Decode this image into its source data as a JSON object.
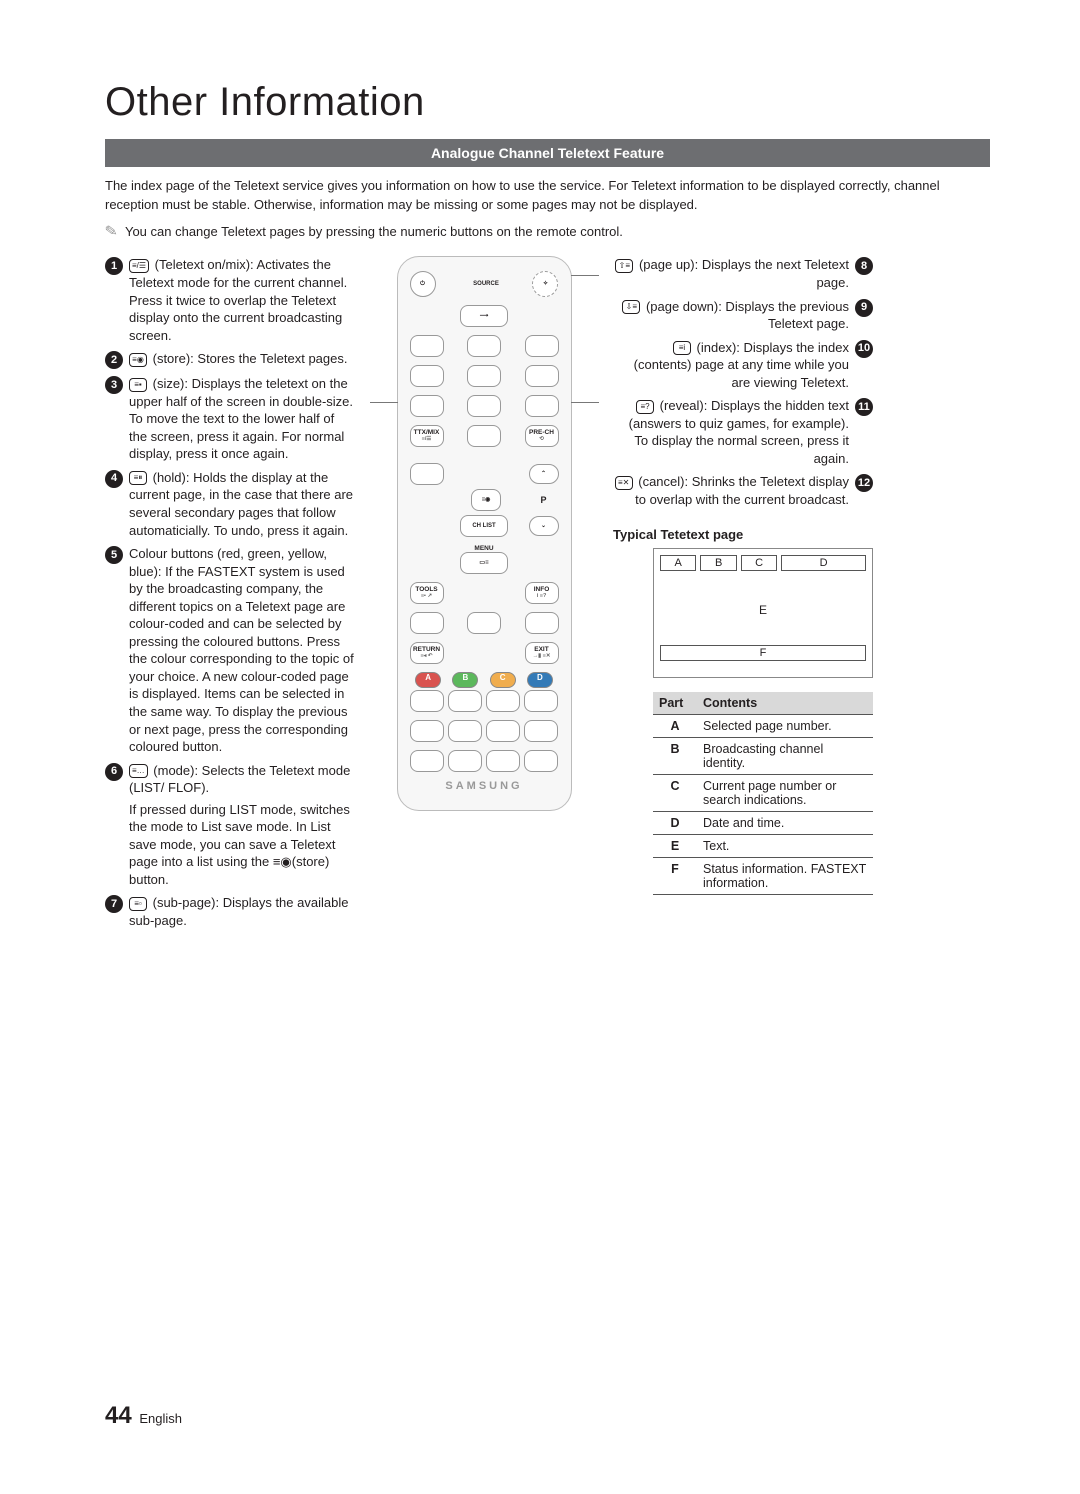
{
  "title": "Other Information",
  "subtitle": "Analogue Channel Teletext Feature",
  "intro": "The index page of the Teletext service gives you information on how to use the service. For Teletext information to be displayed correctly, channel reception must be stable. Otherwise, information may be missing or some pages may not be displayed.",
  "note": "You can change Teletext pages by pressing the numeric buttons on the remote control.",
  "left": [
    {
      "n": "1",
      "icon": "≡/☰",
      "text": "(Teletext on/mix): Activates the Teletext mode for the current channel. Press it twice to overlap the Teletext display onto the current broadcasting screen."
    },
    {
      "n": "2",
      "icon": "≡◉",
      "text": "(store): Stores the Teletext pages."
    },
    {
      "n": "3",
      "icon": "≡▪",
      "text": "(size): Displays the teletext on the upper half of the screen in double-size. To move the text to the lower half of the screen, press it again. For normal display, press it once again."
    },
    {
      "n": "4",
      "icon": "≡⏸",
      "text": "(hold): Holds the display at the current page, in the case that there are several secondary pages that follow automaticially. To undo, press it again."
    },
    {
      "n": "5",
      "icon": "",
      "text": "Colour buttons (red, green, yellow, blue): If the FASTEXT system is used by the broadcasting company, the different topics on a Teletext page are colour-coded and can be selected by pressing the coloured buttons. Press the colour corresponding to the topic of your choice. A new colour-coded page is displayed. Items can be selected in the same way. To display the previous or next page, press the corresponding coloured button."
    },
    {
      "n": "6",
      "icon": "≡…",
      "text": "(mode): Selects the Teletext mode (LIST/ FLOF).",
      "extra": "If pressed during LIST mode, switches the mode to List save mode. In List save mode, you can save a Teletext page into a list using the ≡◉(store) button."
    },
    {
      "n": "7",
      "icon": "≡▫",
      "text": "(sub-page): Displays the available sub-page."
    }
  ],
  "right": [
    {
      "n": "8",
      "icon": "⇧≡",
      "text": "(page up): Displays the next Teletext page."
    },
    {
      "n": "9",
      "icon": "⇩≡",
      "text": "(page down): Displays the previous Teletext page."
    },
    {
      "n": "10",
      "icon": "≡i",
      "text": "(index): Displays the index (contents) page at any time while you are viewing Teletext."
    },
    {
      "n": "11",
      "icon": "≡?",
      "text": "(reveal): Displays the hidden text (answers to quiz games, for example). To display the normal screen, press it again."
    },
    {
      "n": "12",
      "icon": "≡✕",
      "text": "(cancel): Shrinks the Teletext display to overlap with the current broadcast."
    }
  ],
  "tt_heading": "Typical Tetetext page",
  "tt_parts": {
    "A": "A",
    "B": "B",
    "C": "C",
    "D": "D",
    "E": "E",
    "F": "F"
  },
  "table": {
    "head": {
      "part": "Part",
      "contents": "Contents"
    },
    "rows": [
      {
        "p": "A",
        "c": "Selected page number."
      },
      {
        "p": "B",
        "c": "Broadcasting channel identity."
      },
      {
        "p": "C",
        "c": "Current page number or search indications."
      },
      {
        "p": "D",
        "c": "Date and time."
      },
      {
        "p": "E",
        "c": "Text."
      },
      {
        "p": "F",
        "c": "Status information. FASTEXT information."
      }
    ]
  },
  "remote": {
    "source": "SOURCE",
    "ttx": "TTX/MIX",
    "prech": "PRE-CH",
    "chlist": "CH LIST",
    "menu": "MENU",
    "tools": "TOOLS",
    "info": "INFO",
    "return": "RETURN",
    "exit": "EXIT",
    "brand": "SAMSUNG",
    "p": "P",
    "colors": [
      "A",
      "B",
      "C",
      "D"
    ]
  },
  "page": {
    "num": "44",
    "lang": "English"
  }
}
